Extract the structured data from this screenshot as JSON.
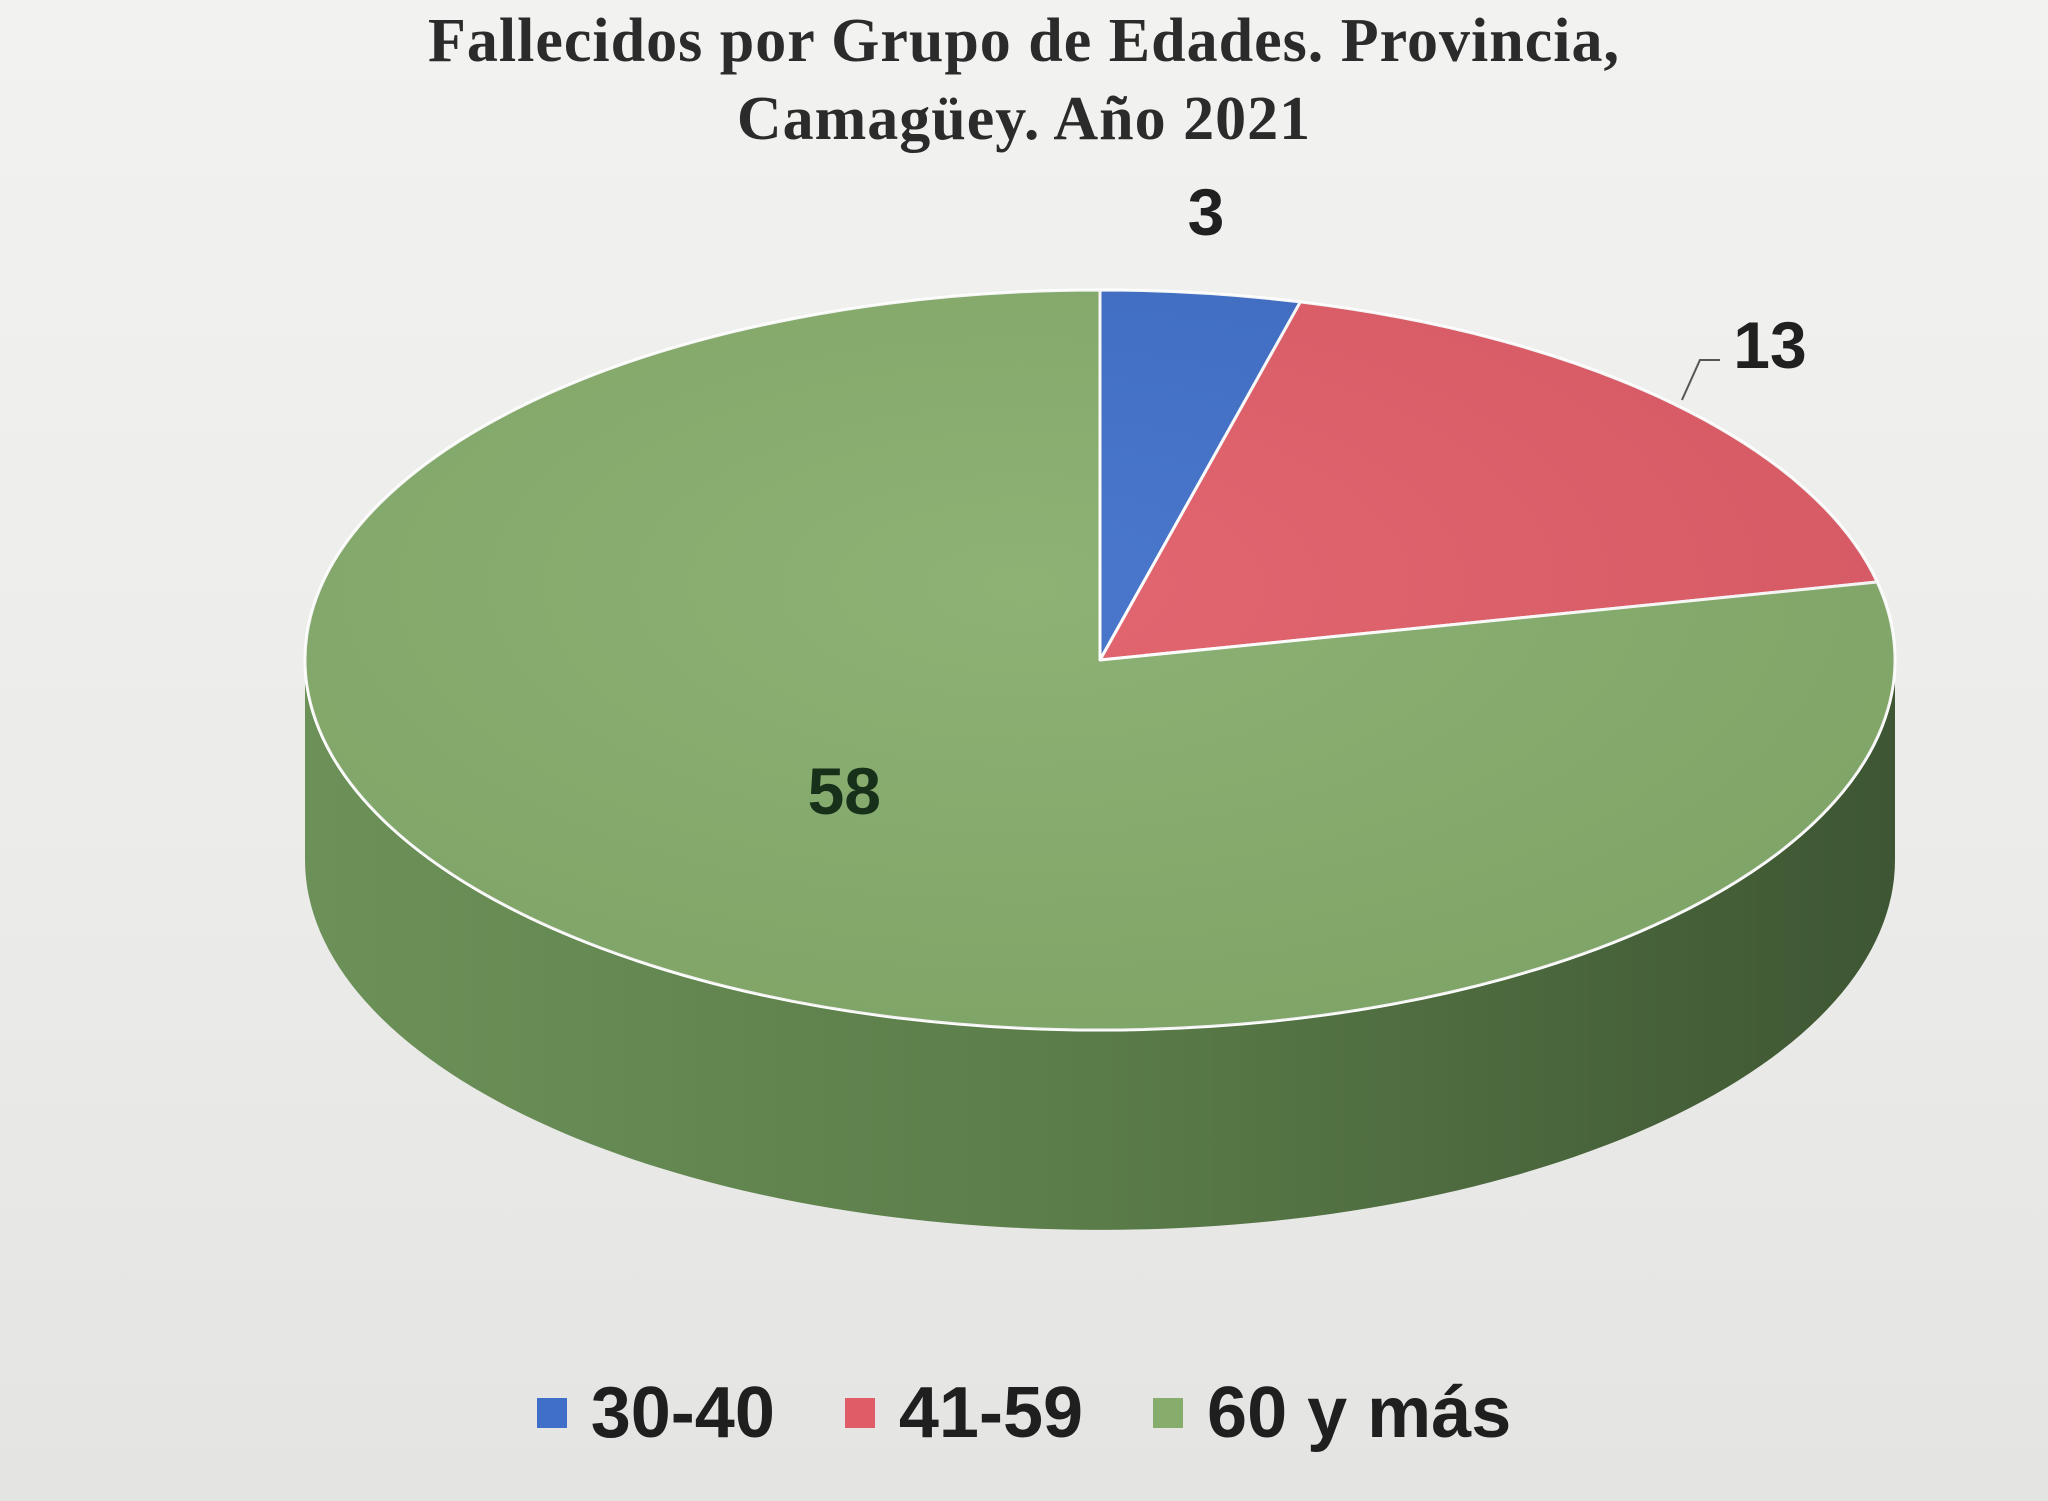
{
  "chart_data": {
    "type": "pie",
    "title_lines": [
      "Fallecidos por Grupo de Edades. Provincia,",
      "Camagüey. Año 2021"
    ],
    "categories": [
      "30-40",
      "41-59",
      "60 y más"
    ],
    "values": [
      3,
      13,
      58
    ],
    "data_labels": [
      "3",
      "13",
      "58"
    ],
    "colors": [
      "#3f6fc8",
      "#e05d68",
      "#86ad6c"
    ],
    "style": "3d",
    "legend_placement": "bottom"
  }
}
